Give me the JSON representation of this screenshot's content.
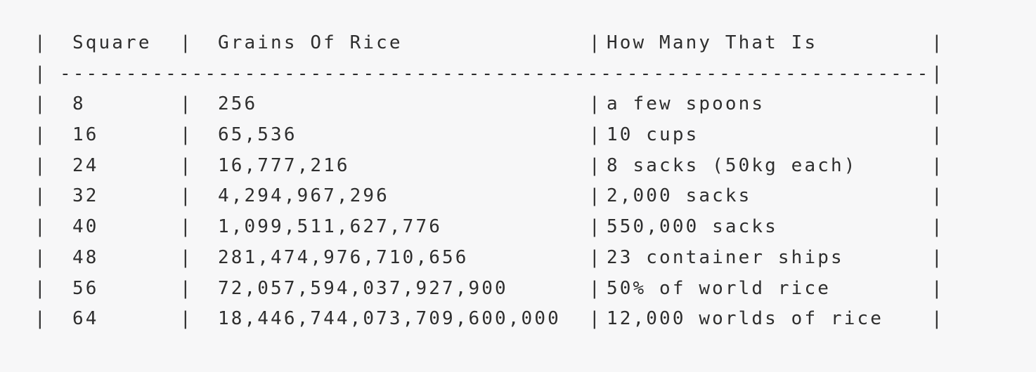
{
  "colors": {
    "background": "#f7f7f8",
    "text": "#2e2e2e"
  },
  "table": {
    "pipe": "|",
    "separator_dashes": "------------------------------------------------------------------",
    "headers": {
      "square": "Square",
      "grains": "Grains Of Rice",
      "how_many": "How Many That Is"
    },
    "rows": [
      {
        "square": "8",
        "grains": "256",
        "how_many": "a few spoons"
      },
      {
        "square": "16",
        "grains": "65,536",
        "how_many": "10 cups"
      },
      {
        "square": "24",
        "grains": "16,777,216",
        "how_many": "8 sacks (50kg each)"
      },
      {
        "square": "32",
        "grains": "4,294,967,296",
        "how_many": "2,000 sacks"
      },
      {
        "square": "40",
        "grains": "1,099,511,627,776",
        "how_many": "550,000 sacks"
      },
      {
        "square": "48",
        "grains": "281,474,976,710,656",
        "how_many": "23 container ships"
      },
      {
        "square": "56",
        "grains": "72,057,594,037,927,900",
        "how_many": "50% of world rice"
      },
      {
        "square": "64",
        "grains": "18,446,744,073,709,600,000",
        "how_many": "12,000 worlds of rice"
      }
    ]
  },
  "chart_data": {
    "type": "table",
    "title": "",
    "columns": [
      "Square",
      "Grains Of Rice",
      "How Many That Is"
    ],
    "rows": [
      [
        "8",
        "256",
        "a few spoons"
      ],
      [
        "16",
        "65,536",
        "10 cups"
      ],
      [
        "24",
        "16,777,216",
        "8 sacks (50kg each)"
      ],
      [
        "32",
        "4,294,967,296",
        "2,000 sacks"
      ],
      [
        "40",
        "1,099,511,627,776",
        "550,000 sacks"
      ],
      [
        "48",
        "281,474,976,710,656",
        "23 container ships"
      ],
      [
        "56",
        "72,057,594,037,927,900",
        "50% of world rice"
      ],
      [
        "64",
        "18,446,744,073,709,600,000",
        "12,000 worlds of rice"
      ]
    ],
    "numeric_series": {
      "square": [
        8,
        16,
        24,
        32,
        40,
        48,
        56,
        64
      ],
      "grains_of_rice": [
        256,
        65536,
        16777216,
        4294967296,
        1099511627776,
        281474976710656,
        72057594037927900,
        18446744073709600000
      ]
    }
  }
}
